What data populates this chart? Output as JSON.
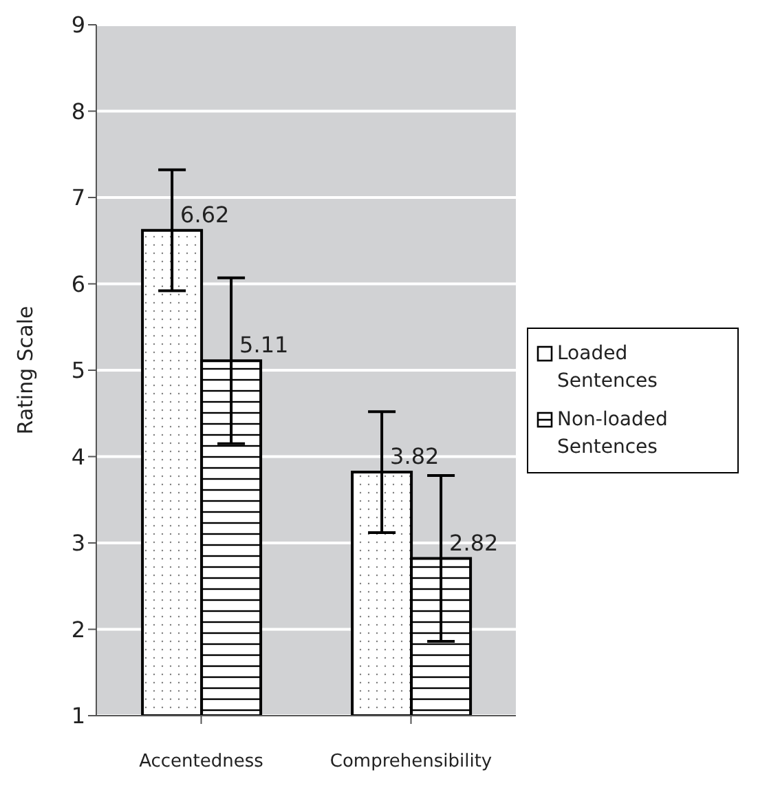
{
  "chart_data": {
    "type": "bar",
    "ylabel": "Rating Scale",
    "categories": [
      "Accentedness",
      "Comprehensibility"
    ],
    "series": [
      {
        "name": "Loaded Sentences",
        "color": "#000000",
        "values": [
          6.62,
          3.82
        ],
        "errors": [
          0.7,
          0.7
        ]
      },
      {
        "name": "Non-loaded Sentences",
        "color": "#000000",
        "values": [
          5.11,
          2.82
        ],
        "errors": [
          0.96,
          0.96
        ]
      }
    ],
    "ylim": [
      1,
      9
    ],
    "yticks": [
      1,
      2,
      3,
      4,
      5,
      6,
      7,
      8,
      9
    ],
    "grid": "y",
    "legend": "right",
    "data_labels": true
  }
}
